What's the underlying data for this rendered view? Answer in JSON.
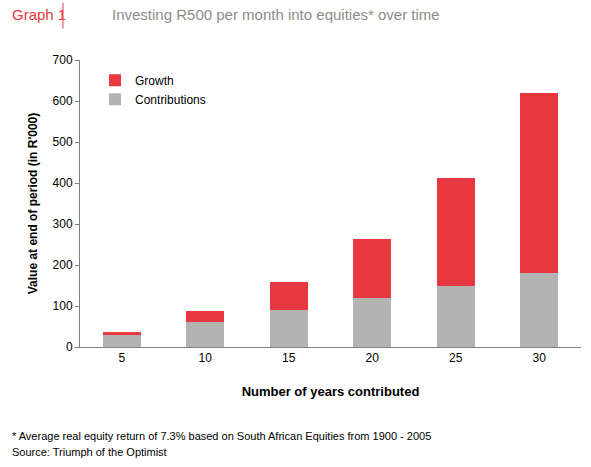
{
  "chart_data": {
    "type": "bar",
    "title": "Graph 1",
    "subtitle": "Investing R500 per month into equities* over time",
    "x_label": "Number of years contributed",
    "y_label": "Value at end of period (in R'000)",
    "annotations": [
      "* Average real equity return of 7.3% based on South African Equities from 1900 - 2005",
      "Source: Triumph of the Optimist"
    ],
    "categories": [
      "5",
      "10",
      "15",
      "20",
      "25",
      "30"
    ],
    "series": [
      {
        "name": "Contributions",
        "color": "#b3b3b3",
        "values": [
          30,
          60,
          90,
          120,
          150,
          180
        ]
      },
      {
        "name": "Growth",
        "color": "#e8383f",
        "values": [
          7,
          28,
          68,
          143,
          262,
          440
        ]
      }
    ],
    "ylim": [
      0,
      700
    ],
    "yticks": [
      0,
      100,
      200,
      300,
      400,
      500,
      600,
      700
    ],
    "stacked": true,
    "grid": false,
    "legend": "top-left"
  }
}
